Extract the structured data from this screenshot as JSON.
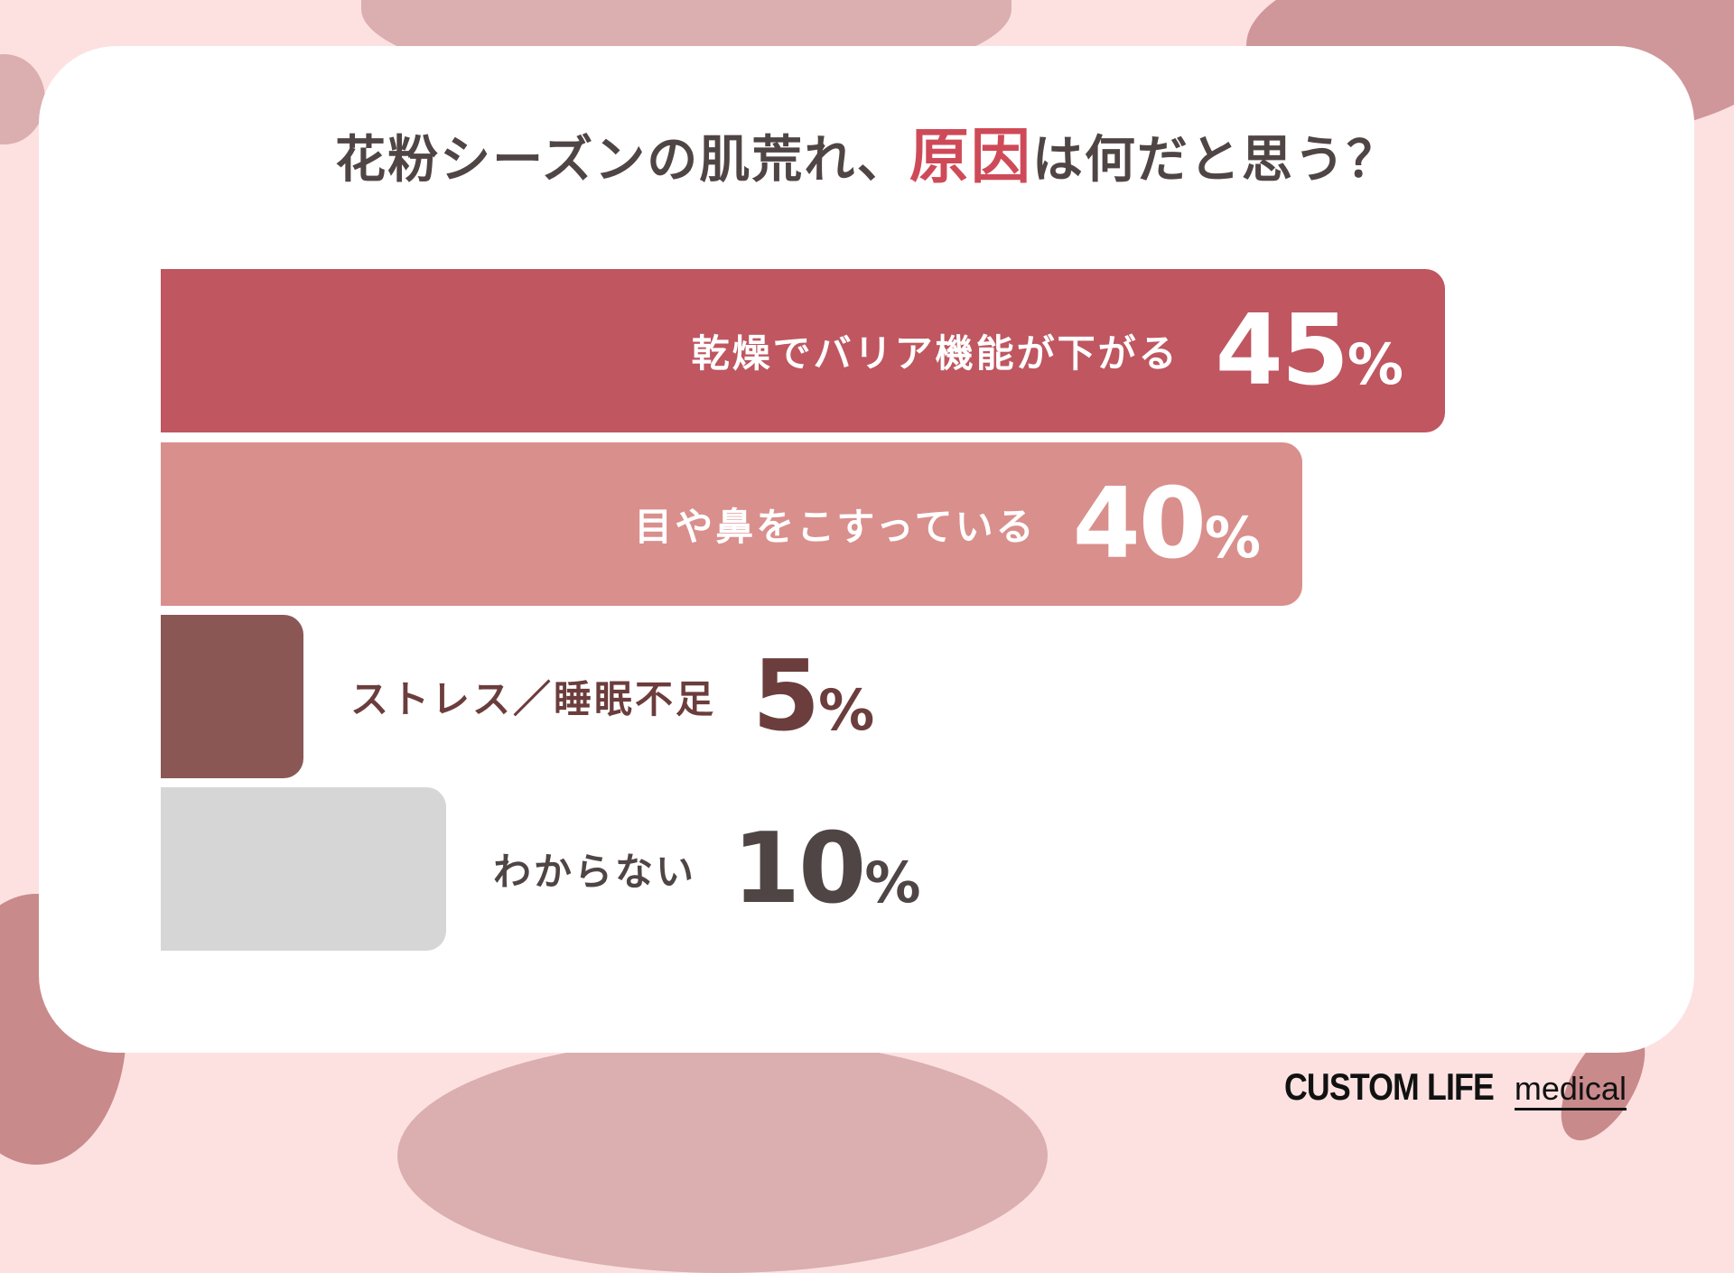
{
  "title": {
    "before": "花粉シーズンの肌荒れ、",
    "highlight": "原因",
    "after": "は何だと思う？"
  },
  "colors": {
    "background": "#fde1e1",
    "highlight": "#cf4a58",
    "text": "#4f4544"
  },
  "chart_data": {
    "type": "bar",
    "orientation": "horizontal",
    "categories": [
      "乾燥でバリア機能が下がる",
      "目や鼻をこすっている",
      "ストレス／睡眠不足",
      "わからない"
    ],
    "values": [
      45,
      40,
      5,
      10
    ],
    "unit": "%",
    "colors": [
      "#bf5660",
      "#d98f8c",
      "#8b5755",
      "#d6d6d6"
    ],
    "label_colors": [
      "#ffffff",
      "#ffffff",
      "#6b3d3c",
      "#4f4544"
    ],
    "grid": false
  },
  "logo": {
    "main": "CUSTOM LIFE",
    "sub": "medical"
  }
}
